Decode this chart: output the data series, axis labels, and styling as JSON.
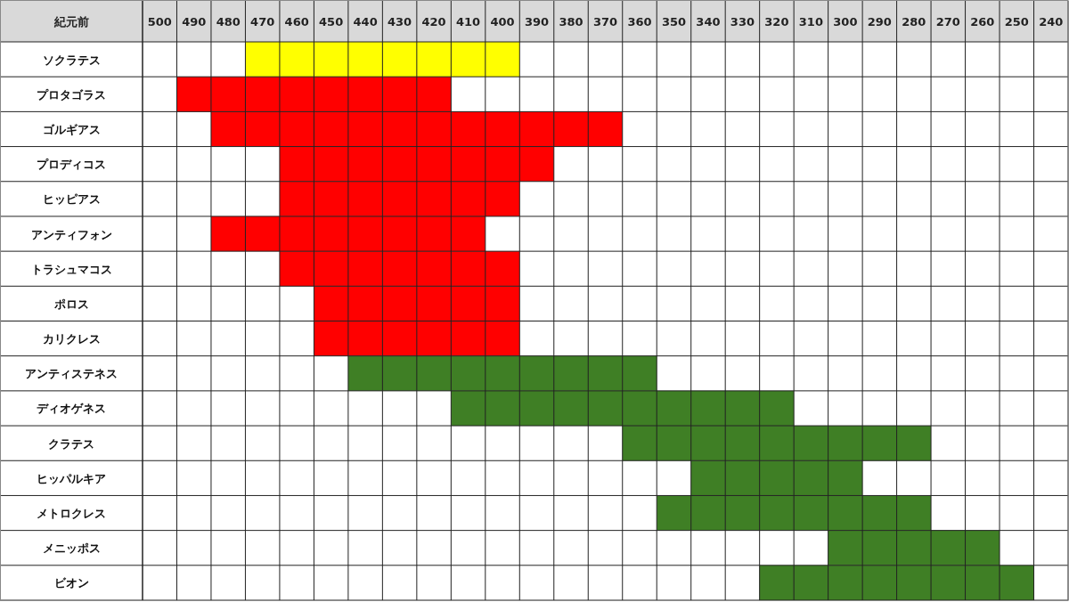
{
  "chart_data": {
    "type": "bar",
    "orientation": "horizontal",
    "xlabel": "紀元前",
    "categories": [
      "ソクラテス",
      "プロタゴラス",
      "ゴルギアス",
      "プロディコス",
      "ヒッピアス",
      "アンティフォン",
      "トラシュマコス",
      "ポロス",
      "カリクレス",
      "アンティステネス",
      "ディオゲネス",
      "クラテス",
      "ヒッパルキア",
      "メトロクレス",
      "メニッポス",
      "ビオン"
    ],
    "base": [
      395,
      415,
      365,
      385,
      395,
      405,
      395,
      395,
      395,
      355,
      315,
      275,
      295,
      275,
      255,
      245
    ],
    "values": [
      80,
      80,
      120,
      80,
      70,
      80,
      70,
      60,
      60,
      90,
      100,
      90,
      50,
      80,
      50,
      80
    ],
    "colors": [
      "#ffff00",
      "#ff0000",
      "#ff0000",
      "#ff0000",
      "#ff0000",
      "#ff0000",
      "#ff0000",
      "#ff0000",
      "#ff0000",
      "#3f7f25",
      "#3f7f25",
      "#3f7f25",
      "#3f7f25",
      "#3f7f25",
      "#3f7f25",
      "#3f7f25"
    ],
    "xlim": [
      505,
      235
    ],
    "xticks": [
      500,
      490,
      480,
      470,
      460,
      450,
      440,
      430,
      420,
      410,
      400,
      390,
      380,
      370,
      360,
      350,
      340,
      330,
      320,
      310,
      300,
      290,
      280,
      270,
      260,
      250,
      240
    ],
    "grid": true
  }
}
